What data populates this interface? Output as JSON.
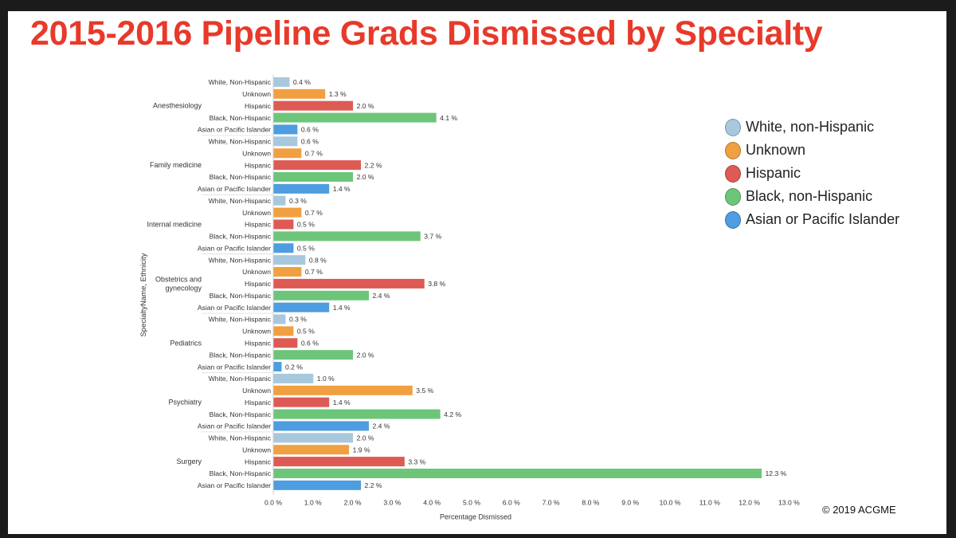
{
  "title": "2015-2016 Pipeline Grads Dismissed by Specialty",
  "copyright": "© 2019  ACGME",
  "colors": {
    "white_non_hispanic": "#a8c8de",
    "unknown": "#f0a040",
    "hispanic": "#de5a55",
    "black_non_hispanic": "#6dc57a",
    "asian_pacific": "#4d9de0"
  },
  "legend": [
    {
      "label": "White, non-Hispanic",
      "key": "white_non_hispanic"
    },
    {
      "label": "Unknown",
      "key": "unknown"
    },
    {
      "label": "Hispanic",
      "key": "hispanic"
    },
    {
      "label": "Black, non-Hispanic",
      "key": "black_non_hispanic"
    },
    {
      "label": "Asian or Pacific Islander",
      "key": "asian_pacific"
    }
  ],
  "chart_data": {
    "type": "bar",
    "orientation": "horizontal",
    "xlabel": "Percentage Dismissed",
    "ylabel": "SpecialtyName, Ethnicity",
    "xlim": [
      0,
      13
    ],
    "xticks": [
      "0.0 %",
      "1.0 %",
      "2.0 %",
      "3.0 %",
      "4.0 %",
      "5.0 %",
      "6.0 %",
      "7.0 %",
      "8.0 %",
      "9.0 %",
      "10.0 %",
      "11.0 %",
      "12.0 %",
      "13.0 %"
    ],
    "groups": [
      {
        "specialty": "Anesthesiology",
        "bars": [
          {
            "ethnicity": "White, Non-Hispanic",
            "key": "white_non_hispanic",
            "value": 0.4,
            "label": "0.4 %"
          },
          {
            "ethnicity": "Unknown",
            "key": "unknown",
            "value": 1.3,
            "label": "1.3 %"
          },
          {
            "ethnicity": "Hispanic",
            "key": "hispanic",
            "value": 2.0,
            "label": "2.0 %"
          },
          {
            "ethnicity": "Black, Non-Hispanic",
            "key": "black_non_hispanic",
            "value": 4.1,
            "label": "4.1 %"
          },
          {
            "ethnicity": "Asian or Pacific Islander",
            "key": "asian_pacific",
            "value": 0.6,
            "label": "0.6 %"
          }
        ]
      },
      {
        "specialty": "Family medicine",
        "bars": [
          {
            "ethnicity": "White, Non-Hispanic",
            "key": "white_non_hispanic",
            "value": 0.6,
            "label": "0.6 %"
          },
          {
            "ethnicity": "Unknown",
            "key": "unknown",
            "value": 0.7,
            "label": "0.7 %"
          },
          {
            "ethnicity": "Hispanic",
            "key": "hispanic",
            "value": 2.2,
            "label": "2.2 %"
          },
          {
            "ethnicity": "Black, Non-Hispanic",
            "key": "black_non_hispanic",
            "value": 2.0,
            "label": "2.0 %"
          },
          {
            "ethnicity": "Asian or Pacific Islander",
            "key": "asian_pacific",
            "value": 1.4,
            "label": "1.4 %"
          }
        ]
      },
      {
        "specialty": "Internal medicine",
        "bars": [
          {
            "ethnicity": "White, Non-Hispanic",
            "key": "white_non_hispanic",
            "value": 0.3,
            "label": "0.3 %"
          },
          {
            "ethnicity": "Unknown",
            "key": "unknown",
            "value": 0.7,
            "label": "0.7 %"
          },
          {
            "ethnicity": "Hispanic",
            "key": "hispanic",
            "value": 0.5,
            "label": "0.5 %"
          },
          {
            "ethnicity": "Black, Non-Hispanic",
            "key": "black_non_hispanic",
            "value": 3.7,
            "label": "3.7 %"
          },
          {
            "ethnicity": "Asian or Pacific Islander",
            "key": "asian_pacific",
            "value": 0.5,
            "label": "0.5 %"
          }
        ]
      },
      {
        "specialty": "Obstetrics and gynecology",
        "bars": [
          {
            "ethnicity": "White, Non-Hispanic",
            "key": "white_non_hispanic",
            "value": 0.8,
            "label": "0.8 %"
          },
          {
            "ethnicity": "Unknown",
            "key": "unknown",
            "value": 0.7,
            "label": "0.7 %"
          },
          {
            "ethnicity": "Hispanic",
            "key": "hispanic",
            "value": 3.8,
            "label": "3.8 %"
          },
          {
            "ethnicity": "Black, Non-Hispanic",
            "key": "black_non_hispanic",
            "value": 2.4,
            "label": "2.4 %"
          },
          {
            "ethnicity": "Asian or Pacific Islander",
            "key": "asian_pacific",
            "value": 1.4,
            "label": "1.4 %"
          }
        ]
      },
      {
        "specialty": "Pediatrics",
        "bars": [
          {
            "ethnicity": "White, Non-Hispanic",
            "key": "white_non_hispanic",
            "value": 0.3,
            "label": "0.3 %"
          },
          {
            "ethnicity": "Unknown",
            "key": "unknown",
            "value": 0.5,
            "label": "0.5 %"
          },
          {
            "ethnicity": "Hispanic",
            "key": "hispanic",
            "value": 0.6,
            "label": "0.6 %"
          },
          {
            "ethnicity": "Black, Non-Hispanic",
            "key": "black_non_hispanic",
            "value": 2.0,
            "label": "2.0 %"
          },
          {
            "ethnicity": "Asian or Pacific Islander",
            "key": "asian_pacific",
            "value": 0.2,
            "label": "0.2 %"
          }
        ]
      },
      {
        "specialty": "Psychiatry",
        "bars": [
          {
            "ethnicity": "White, Non-Hispanic",
            "key": "white_non_hispanic",
            "value": 1.0,
            "label": "1.0 %"
          },
          {
            "ethnicity": "Unknown",
            "key": "unknown",
            "value": 3.5,
            "label": "3.5 %"
          },
          {
            "ethnicity": "Hispanic",
            "key": "hispanic",
            "value": 1.4,
            "label": "1.4 %"
          },
          {
            "ethnicity": "Black, Non-Hispanic",
            "key": "black_non_hispanic",
            "value": 4.2,
            "label": "4.2 %"
          },
          {
            "ethnicity": "Asian or Pacific Islander",
            "key": "asian_pacific",
            "value": 2.4,
            "label": "2.4 %"
          }
        ]
      },
      {
        "specialty": "Surgery",
        "bars": [
          {
            "ethnicity": "White, Non-Hispanic",
            "key": "white_non_hispanic",
            "value": 2.0,
            "label": "2.0 %"
          },
          {
            "ethnicity": "Unknown",
            "key": "unknown",
            "value": 1.9,
            "label": "1.9 %"
          },
          {
            "ethnicity": "Hispanic",
            "key": "hispanic",
            "value": 3.3,
            "label": "3.3 %"
          },
          {
            "ethnicity": "Black, Non-Hispanic",
            "key": "black_non_hispanic",
            "value": 12.3,
            "label": "12.3 %"
          },
          {
            "ethnicity": "Asian or Pacific Islander",
            "key": "asian_pacific",
            "value": 2.2,
            "label": "2.2 %"
          }
        ]
      }
    ]
  }
}
